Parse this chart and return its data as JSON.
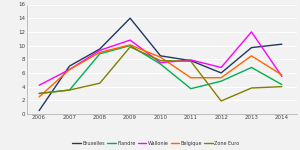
{
  "years": [
    2006,
    2007,
    2008,
    2009,
    2010,
    2011,
    2012,
    2013,
    2014
  ],
  "series": {
    "Bruxelles": [
      0.5,
      7.0,
      9.5,
      14.0,
      8.5,
      7.8,
      6.0,
      9.7,
      10.2
    ],
    "Flandre": [
      3.0,
      3.5,
      8.8,
      10.0,
      7.3,
      3.7,
      4.8,
      6.8,
      4.3
    ],
    "Wallonie": [
      4.2,
      6.5,
      9.3,
      10.8,
      7.5,
      7.9,
      6.8,
      12.0,
      5.5
    ],
    "Belgique": [
      2.5,
      6.5,
      9.0,
      10.1,
      8.3,
      5.3,
      5.3,
      8.5,
      5.7
    ],
    "Zone Euro": [
      3.0,
      3.5,
      4.5,
      9.8,
      7.8,
      7.7,
      1.9,
      3.8,
      4.0
    ]
  },
  "colors": {
    "Bruxelles": "#1F3864",
    "Flandre": "#00B050",
    "Wallonie": "#FF00FF",
    "Belgique": "#FF6600",
    "Zone Euro": "#808000"
  },
  "ylim": [
    0,
    16
  ],
  "yticks": [
    0,
    2,
    4,
    6,
    8,
    10,
    12,
    14,
    16
  ],
  "background": "#F2F2F2",
  "grid_color": "#FFFFFF",
  "spine_color": "#AAAAAA"
}
